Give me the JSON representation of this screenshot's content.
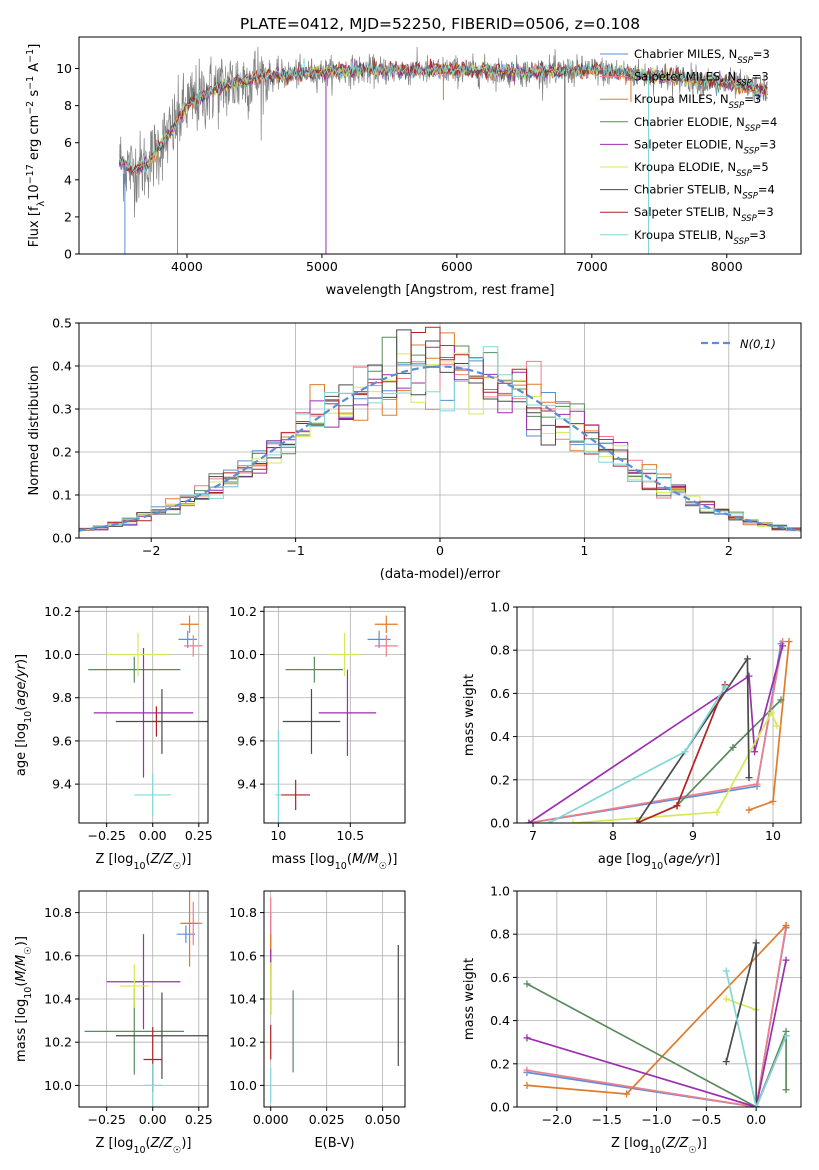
{
  "title": "PLATE=0412, MJD=52250, FIBERID=0506, z=0.108",
  "colors": {
    "chabrier_miles": "#5a8fd6",
    "salpeter_miles": "#ef7e8c",
    "kroupa_miles": "#e07b2a",
    "chabrier_elodie": "#5b8a5e",
    "salpeter_elodie": "#9b2fae",
    "kroupa_elodie": "#d9e85a",
    "chabrier_stelib": "#4a4a4a",
    "salpeter_stelib": "#b22222",
    "kroupa_stelib": "#80d8d8",
    "normal": "#5a8fd6",
    "grid": "#b0b0b0"
  },
  "legend": [
    {
      "key": "chabrier_miles",
      "prefix": "Chabrier MILES, N",
      "sub": "SSP",
      "suffix": "=3"
    },
    {
      "key": "salpeter_miles",
      "prefix": "Salpeter MILES, N",
      "sub": "SSP",
      "suffix": "=3"
    },
    {
      "key": "kroupa_miles",
      "prefix": "Kroupa MILES, N",
      "sub": "SSP",
      "suffix": "=3"
    },
    {
      "key": "chabrier_elodie",
      "prefix": "Chabrier ELODIE, N",
      "sub": "SSP",
      "suffix": "=4"
    },
    {
      "key": "salpeter_elodie",
      "prefix": "Salpeter ELODIE, N",
      "sub": "SSP",
      "suffix": "=3"
    },
    {
      "key": "kroupa_elodie",
      "prefix": "Kroupa ELODIE, N",
      "sub": "SSP",
      "suffix": "=5"
    },
    {
      "key": "chabrier_stelib",
      "prefix": "Chabrier STELIB, N",
      "sub": "SSP",
      "suffix": "=4"
    },
    {
      "key": "salpeter_stelib",
      "prefix": "Salpeter STELIB, N",
      "sub": "SSP",
      "suffix": "=3"
    },
    {
      "key": "kroupa_stelib",
      "prefix": "Kroupa STELIB, N",
      "sub": "SSP",
      "suffix": "=3"
    }
  ],
  "chart_data": [
    {
      "id": "spectrum",
      "type": "line",
      "xlabel": "wavelength [Angstrom, rest frame]",
      "ylabel": "Flux [fλ10⁻¹⁷ erg cm⁻² s⁻¹ A⁻¹]",
      "xlim": [
        3200,
        8550
      ],
      "ylim": [
        0,
        11.7
      ],
      "xticks": [
        4000,
        5000,
        6000,
        7000,
        8000
      ],
      "yticks": [
        0,
        2,
        4,
        6,
        8,
        10
      ],
      "continuum": {
        "x": [
          3500,
          3600,
          3700,
          3800,
          3900,
          4000,
          4200,
          4400,
          4600,
          4800,
          5000,
          5200,
          5500,
          6000,
          6500,
          7000,
          7500,
          8000,
          8300
        ],
        "y": [
          5.0,
          4.5,
          4.8,
          5.8,
          6.8,
          8.0,
          8.9,
          9.3,
          9.6,
          9.7,
          9.8,
          9.9,
          9.9,
          9.9,
          9.8,
          9.9,
          9.6,
          9.2,
          8.8
        ]
      },
      "dips": [
        {
          "x": 3540,
          "to": 0
        },
        {
          "x": 3930,
          "to": 0
        },
        {
          "x": 5030,
          "to": 0
        },
        {
          "x": 6800,
          "to": 0
        },
        {
          "x": 7420,
          "to": 0
        },
        {
          "x": 5900,
          "to": 8.3
        },
        {
          "x": 7290,
          "to": 8.2
        }
      ]
    },
    {
      "id": "residuals",
      "type": "histogram",
      "xlabel": "(data-model)/error",
      "ylabel": "Normed distribution",
      "xlim": [
        -2.5,
        2.5
      ],
      "ylim": [
        0,
        0.5
      ],
      "xticks": [
        -2,
        -1,
        0,
        1,
        2
      ],
      "yticks": [
        0.0,
        0.1,
        0.2,
        0.3,
        0.4,
        0.5
      ],
      "bin_width": 0.1,
      "normal_label": "N(0,1)"
    },
    {
      "id": "age_vs_Z",
      "type": "scatter",
      "xlabel": "Z [log10(Z/Z☉)]",
      "ylabel": "age  [log10(age/yr)]",
      "xlim": [
        -0.4,
        0.3
      ],
      "ylim": [
        9.22,
        10.22
      ],
      "xticks": [
        -0.25,
        0.0,
        0.25
      ],
      "xticklabels": [
        "−0.25",
        "0.00",
        "0.25"
      ],
      "yticks": [
        9.4,
        9.6,
        9.8,
        10.0,
        10.2
      ],
      "points": [
        {
          "key": "chabrier_miles",
          "x": 0.19,
          "xerr": 0.05,
          "y": 10.07,
          "yerr": 0.04
        },
        {
          "key": "salpeter_miles",
          "x": 0.22,
          "xerr": 0.05,
          "y": 10.04,
          "yerr": 0.05
        },
        {
          "key": "kroupa_miles",
          "x": 0.2,
          "xerr": 0.05,
          "y": 10.14,
          "yerr": 0.04
        },
        {
          "key": "chabrier_elodie",
          "x": -0.1,
          "xerr": 0.25,
          "y": 9.93,
          "yerr": 0.06
        },
        {
          "key": "salpeter_elodie",
          "x": -0.05,
          "xerr": 0.27,
          "y": 9.73,
          "yerr": 0.3
        },
        {
          "key": "kroupa_elodie",
          "x": -0.08,
          "xerr": 0.17,
          "y": 10.0,
          "yerr": 0.1
        },
        {
          "key": "chabrier_stelib",
          "x": 0.05,
          "xerr": 0.25,
          "y": 9.69,
          "yerr": 0.15
        },
        {
          "key": "salpeter_stelib",
          "x": 0.02,
          "xerr": 0.02,
          "y": 9.69,
          "yerr": 0.07
        },
        {
          "key": "kroupa_stelib",
          "x": 0.0,
          "xerr": 0.1,
          "y": 9.35,
          "yerr": 0.1
        }
      ]
    },
    {
      "id": "age_vs_mass",
      "type": "scatter",
      "xlabel": "mass [log10(M/M☉)]",
      "ylabel": "",
      "xlim": [
        9.9,
        10.88
      ],
      "ylim": [
        9.22,
        10.22
      ],
      "xticks": [
        10.0,
        10.5
      ],
      "yticks": [
        9.4,
        9.6,
        9.8,
        10.0,
        10.2
      ],
      "points": [
        {
          "key": "chabrier_miles",
          "x": 10.7,
          "xerr": 0.08,
          "y": 10.07,
          "yerr": 0.04
        },
        {
          "key": "salpeter_miles",
          "x": 10.75,
          "xerr": 0.08,
          "y": 10.04,
          "yerr": 0.05
        },
        {
          "key": "kroupa_miles",
          "x": 10.75,
          "xerr": 0.08,
          "y": 10.14,
          "yerr": 0.04
        },
        {
          "key": "chabrier_elodie",
          "x": 10.25,
          "xerr": 0.2,
          "y": 9.93,
          "yerr": 0.06
        },
        {
          "key": "salpeter_elodie",
          "x": 10.48,
          "xerr": 0.2,
          "y": 9.73,
          "yerr": 0.2
        },
        {
          "key": "kroupa_elodie",
          "x": 10.46,
          "xerr": 0.1,
          "y": 10.0,
          "yerr": 0.1
        },
        {
          "key": "chabrier_stelib",
          "x": 10.23,
          "xerr": 0.2,
          "y": 9.69,
          "yerr": 0.15
        },
        {
          "key": "salpeter_stelib",
          "x": 10.12,
          "xerr": 0.1,
          "y": 9.35,
          "yerr": 0.07
        },
        {
          "key": "kroupa_stelib",
          "x": 10.0,
          "xerr": 0.02,
          "y": 9.35,
          "yerr": 0.3
        }
      ]
    },
    {
      "id": "weight_vs_age",
      "type": "line",
      "xlabel": "age  [log10(age/yr)]",
      "ylabel": "mass weight",
      "xlim": [
        6.8,
        10.35
      ],
      "ylim": [
        0,
        1
      ],
      "xticks": [
        7,
        8,
        9,
        10
      ],
      "yticks": [
        0.0,
        0.2,
        0.4,
        0.6,
        0.8,
        1.0
      ],
      "series": [
        {
          "key": "chabrier_miles",
          "x": [
            6.95,
            9.8,
            10.1
          ],
          "y": [
            0.0,
            0.17,
            0.83
          ]
        },
        {
          "key": "salpeter_miles",
          "x": [
            6.95,
            9.8,
            10.12
          ],
          "y": [
            0.0,
            0.18,
            0.84
          ]
        },
        {
          "key": "kroupa_miles",
          "x": [
            9.7,
            10.0,
            10.2
          ],
          "y": [
            0.06,
            0.1,
            0.84
          ]
        },
        {
          "key": "chabrier_elodie",
          "x": [
            8.8,
            9.5,
            10.1
          ],
          "y": [
            0.08,
            0.35,
            0.57
          ]
        },
        {
          "key": "salpeter_elodie",
          "x": [
            6.95,
            9.7,
            9.77,
            10.12
          ],
          "y": [
            0.0,
            0.68,
            0.33,
            0.82
          ]
        },
        {
          "key": "kroupa_elodie",
          "x": [
            7.5,
            9.3,
            9.98,
            10.05
          ],
          "y": [
            0.0,
            0.05,
            0.51,
            0.45
          ]
        },
        {
          "key": "chabrier_stelib",
          "x": [
            8.3,
            9.68,
            9.7
          ],
          "y": [
            0.0,
            0.76,
            0.21
          ]
        },
        {
          "key": "salpeter_stelib",
          "x": [
            8.3,
            8.8,
            9.4
          ],
          "y": [
            0.0,
            0.08,
            0.64
          ]
        },
        {
          "key": "kroupa_stelib",
          "x": [
            7.2,
            8.9,
            9.4
          ],
          "y": [
            0.0,
            0.33,
            0.63
          ]
        }
      ]
    },
    {
      "id": "mass_vs_Z",
      "type": "scatter",
      "xlabel": "Z [log10(Z/Z☉)]",
      "ylabel": "mass [log10(M/M☉)]",
      "xlim": [
        -0.4,
        0.3
      ],
      "ylim": [
        9.9,
        10.9
      ],
      "xticks": [
        -0.25,
        0.0,
        0.25
      ],
      "xticklabels": [
        "−0.25",
        "0.00",
        "0.25"
      ],
      "yticks": [
        10.0,
        10.2,
        10.4,
        10.6,
        10.8
      ],
      "points": [
        {
          "key": "chabrier_miles",
          "x": 0.18,
          "xerr": 0.05,
          "y": 10.7,
          "yerr": 0.04
        },
        {
          "key": "salpeter_miles",
          "x": 0.22,
          "xerr": 0.05,
          "y": 10.75,
          "yerr": 0.1
        },
        {
          "key": "kroupa_miles",
          "x": 0.2,
          "xerr": 0.05,
          "y": 10.75,
          "yerr": 0.2
        },
        {
          "key": "chabrier_elodie",
          "x": -0.1,
          "xerr": 0.27,
          "y": 10.25,
          "yerr": 0.2
        },
        {
          "key": "salpeter_elodie",
          "x": -0.05,
          "xerr": 0.2,
          "y": 10.48,
          "yerr": 0.22
        },
        {
          "key": "kroupa_elodie",
          "x": -0.1,
          "xerr": 0.08,
          "y": 10.46,
          "yerr": 0.1
        },
        {
          "key": "chabrier_stelib",
          "x": 0.05,
          "xerr": 0.25,
          "y": 10.23,
          "yerr": 0.2
        },
        {
          "key": "salpeter_stelib",
          "x": 0.0,
          "xerr": 0.05,
          "y": 10.12,
          "yerr": 0.15
        },
        {
          "key": "kroupa_stelib",
          "x": 0.0,
          "xerr": 0.05,
          "y": 10.0,
          "yerr": 0.1
        }
      ]
    },
    {
      "id": "mass_vs_EBV",
      "type": "scatter",
      "xlabel": "E(B-V)",
      "ylabel": "",
      "xlim": [
        -0.003,
        0.06
      ],
      "ylim": [
        9.9,
        10.9
      ],
      "xticks": [
        0.0,
        0.025,
        0.05
      ],
      "xticklabels": [
        "0.000",
        "0.025",
        "0.050"
      ],
      "yticks": [
        10.0,
        10.2,
        10.4,
        10.6,
        10.8
      ],
      "points": [
        {
          "key": "chabrier_miles",
          "x": 0.0,
          "xerr": 0,
          "y": 10.7,
          "yerr": 0.1
        },
        {
          "key": "salpeter_miles",
          "x": 0.0,
          "xerr": 0,
          "y": 10.75,
          "yerr": 0.12
        },
        {
          "key": "kroupa_miles",
          "x": 0.0,
          "xerr": 0,
          "y": 10.6,
          "yerr": 0.1
        },
        {
          "key": "chabrier_elodie",
          "x": 0.01,
          "xerr": 0,
          "y": 10.25,
          "yerr": 0.19
        },
        {
          "key": "salpeter_elodie",
          "x": 0.0,
          "xerr": 0,
          "y": 10.48,
          "yerr": 0.15
        },
        {
          "key": "kroupa_elodie",
          "x": 0.0,
          "xerr": 0,
          "y": 10.45,
          "yerr": 0.12
        },
        {
          "key": "chabrier_stelib",
          "x": 0.057,
          "xerr": 0,
          "y": 10.37,
          "yerr": 0.28
        },
        {
          "key": "salpeter_stelib",
          "x": 0.0,
          "xerr": 0,
          "y": 10.2,
          "yerr": 0.08
        },
        {
          "key": "kroupa_stelib",
          "x": 0.0,
          "xerr": 0,
          "y": 10.0,
          "yerr": 0.08
        }
      ]
    },
    {
      "id": "weight_vs_Z",
      "type": "line",
      "xlabel": "Z [log10(Z/Z☉)]",
      "ylabel": "mass weight",
      "xlim": [
        -2.4,
        0.45
      ],
      "ylim": [
        0,
        1
      ],
      "xticks": [
        -2.0,
        -1.5,
        -1.0,
        -0.5,
        0.0
      ],
      "xticklabels": [
        "−2.0",
        "−1.5",
        "−1.0",
        "−0.5",
        "0.0"
      ],
      "yticks": [
        0.0,
        0.2,
        0.4,
        0.6,
        0.8,
        1.0
      ],
      "series": [
        {
          "key": "chabrier_miles",
          "x": [
            -2.3,
            0.0,
            0.3
          ],
          "y": [
            0.16,
            0.0,
            0.83
          ]
        },
        {
          "key": "salpeter_miles",
          "x": [
            -2.3,
            0.0,
            0.3
          ],
          "y": [
            0.17,
            0.0,
            0.84
          ]
        },
        {
          "key": "kroupa_miles",
          "x": [
            -2.3,
            -1.3,
            0.3
          ],
          "y": [
            0.1,
            0.06,
            0.84
          ]
        },
        {
          "key": "chabrier_elodie",
          "x": [
            -2.3,
            0.0,
            0.3,
            0.3
          ],
          "y": [
            0.57,
            0.0,
            0.35,
            0.08
          ]
        },
        {
          "key": "salpeter_elodie",
          "x": [
            -2.3,
            0.0,
            0.3
          ],
          "y": [
            0.32,
            0.0,
            0.68
          ]
        },
        {
          "key": "kroupa_elodie",
          "x": [
            -0.3,
            0.0
          ],
          "y": [
            0.5,
            0.45
          ]
        },
        {
          "key": "chabrier_stelib",
          "x": [
            -0.3,
            0.0,
            0.0
          ],
          "y": [
            0.21,
            0.76,
            0.0
          ]
        },
        {
          "key": "salpeter_stelib",
          "x": [
            0.0,
            0.3
          ],
          "y": [
            0.0,
            0.33
          ]
        },
        {
          "key": "kroupa_stelib",
          "x": [
            -0.3,
            0.0,
            0.3
          ],
          "y": [
            0.63,
            0.0,
            0.33
          ]
        }
      ]
    }
  ]
}
